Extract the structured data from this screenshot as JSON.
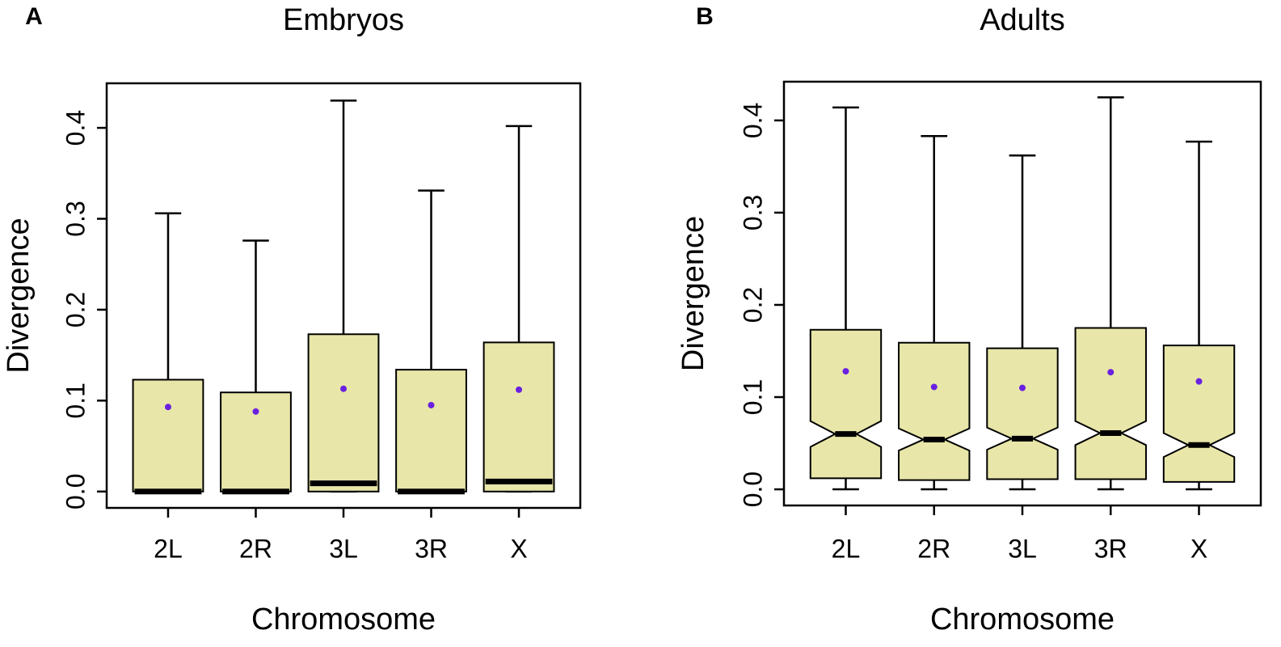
{
  "chart_data": [
    {
      "type": "boxplot",
      "panel_label": "A",
      "title": "Embryos",
      "x_label": "Chromosome",
      "y_label": "Divergence",
      "categories": [
        "2L",
        "2R",
        "3L",
        "3R",
        "X"
      ],
      "category_colors": [
        "#000000",
        "#000000",
        "#e8141c",
        "#000000",
        "#000000"
      ],
      "whisker_low": [
        0,
        0,
        0,
        0,
        0
      ],
      "q1": [
        0,
        0,
        0,
        0,
        0
      ],
      "median": [
        0,
        0,
        0.009,
        0,
        0.011
      ],
      "q3": [
        0.123,
        0.109,
        0.173,
        0.134,
        0.164
      ],
      "whisker_high": [
        0.306,
        0.276,
        0.43,
        0.331,
        0.402
      ],
      "mean": [
        0.093,
        0.088,
        0.113,
        0.095,
        0.112
      ],
      "notch": false,
      "box_color": "#e8e6a8",
      "mean_color": "#6a20e0",
      "ylim": [
        -0.018,
        0.449
      ],
      "yticks": [
        {
          "value": 0,
          "label": "0.0"
        },
        0.1,
        0.2,
        0.3,
        0.4
      ]
    },
    {
      "type": "boxplot",
      "panel_label": "B",
      "title": "Adults",
      "x_label": "Chromosome",
      "y_label": "Divergence",
      "categories": [
        "2L",
        "2R",
        "3L",
        "3R",
        "X"
      ],
      "category_colors": [
        "#000000",
        "#000000",
        "#e8141c",
        "#000000",
        "#000000"
      ],
      "whisker_low": [
        0,
        0,
        0,
        0,
        0
      ],
      "q1": [
        0.012,
        0.01,
        0.011,
        0.011,
        0.008
      ],
      "median": [
        0.06,
        0.054,
        0.055,
        0.061,
        0.048
      ],
      "q3": [
        0.173,
        0.159,
        0.153,
        0.175,
        0.156
      ],
      "whisker_high": [
        0.414,
        0.383,
        0.362,
        0.425,
        0.377
      ],
      "mean": [
        0.128,
        0.111,
        0.11,
        0.127,
        0.117
      ],
      "notch": true,
      "notch_low": [
        0.046,
        0.042,
        0.043,
        0.048,
        0.035
      ],
      "notch_high": [
        0.074,
        0.066,
        0.067,
        0.074,
        0.061
      ],
      "box_color": "#e8e6a8",
      "mean_color": "#6a20e0",
      "ylim": [
        -0.0175,
        0.442
      ],
      "yticks": [
        {
          "value": 0,
          "label": "0.0"
        },
        0.1,
        0.2,
        0.3,
        0.4
      ]
    }
  ]
}
